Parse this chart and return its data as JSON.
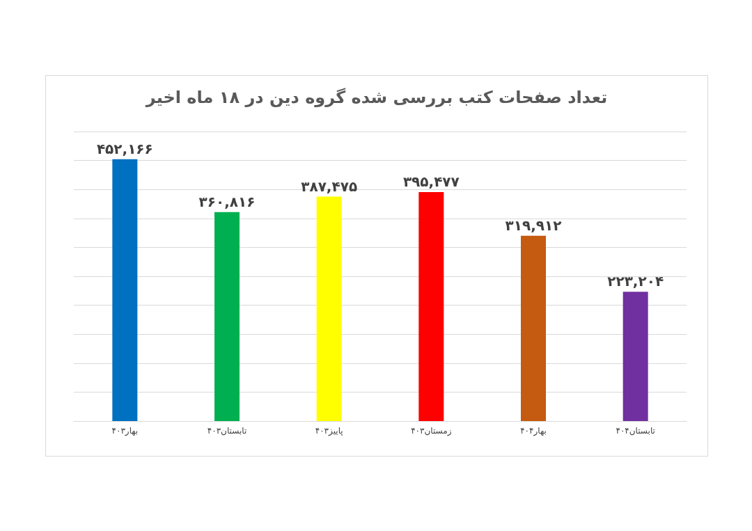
{
  "chart_data": {
    "type": "bar",
    "title": "تعداد صفحات کتب بررسی شده گروه دین در ۱۸ ماه اخیر",
    "categories": [
      "بهار۴۰۳",
      "تابستان۴۰۳",
      "پاییز۴۰۳",
      "زمستان۴۰۳",
      "بهار۴۰۴",
      "تابستان۴۰۴"
    ],
    "values": [
      452166,
      360816,
      387475,
      395477,
      319912,
      223204
    ],
    "colors": [
      "#0070c0",
      "#00b050",
      "#ffff00",
      "#ff0000",
      "#c55a11",
      "#7030a0"
    ],
    "value_labels": [
      "۴۵۲,۱۶۶",
      "۳۶۰,۸۱۶",
      "۳۸۷,۴۷۵",
      "۳۹۵,۴۷۷",
      "۳۱۹,۹۱۲",
      "۲۲۳,۲۰۴"
    ],
    "ylim": [
      0,
      500000
    ],
    "yticks": [
      {
        "value": 0,
        "label": null
      },
      {
        "value": 50000,
        "label": null
      },
      {
        "value": 100000,
        "label": null
      },
      {
        "value": 150000,
        "label": null
      },
      {
        "value": 200000,
        "label": null
      },
      {
        "value": 250000,
        "label": null
      },
      {
        "value": 300000,
        "label": null
      },
      {
        "value": 350000,
        "label": null
      },
      {
        "value": 400000,
        "label": null
      },
      {
        "value": 450000,
        "label": null
      },
      {
        "value": 500000,
        "label": null
      }
    ],
    "tick_labels": "x",
    "grid": "y"
  }
}
